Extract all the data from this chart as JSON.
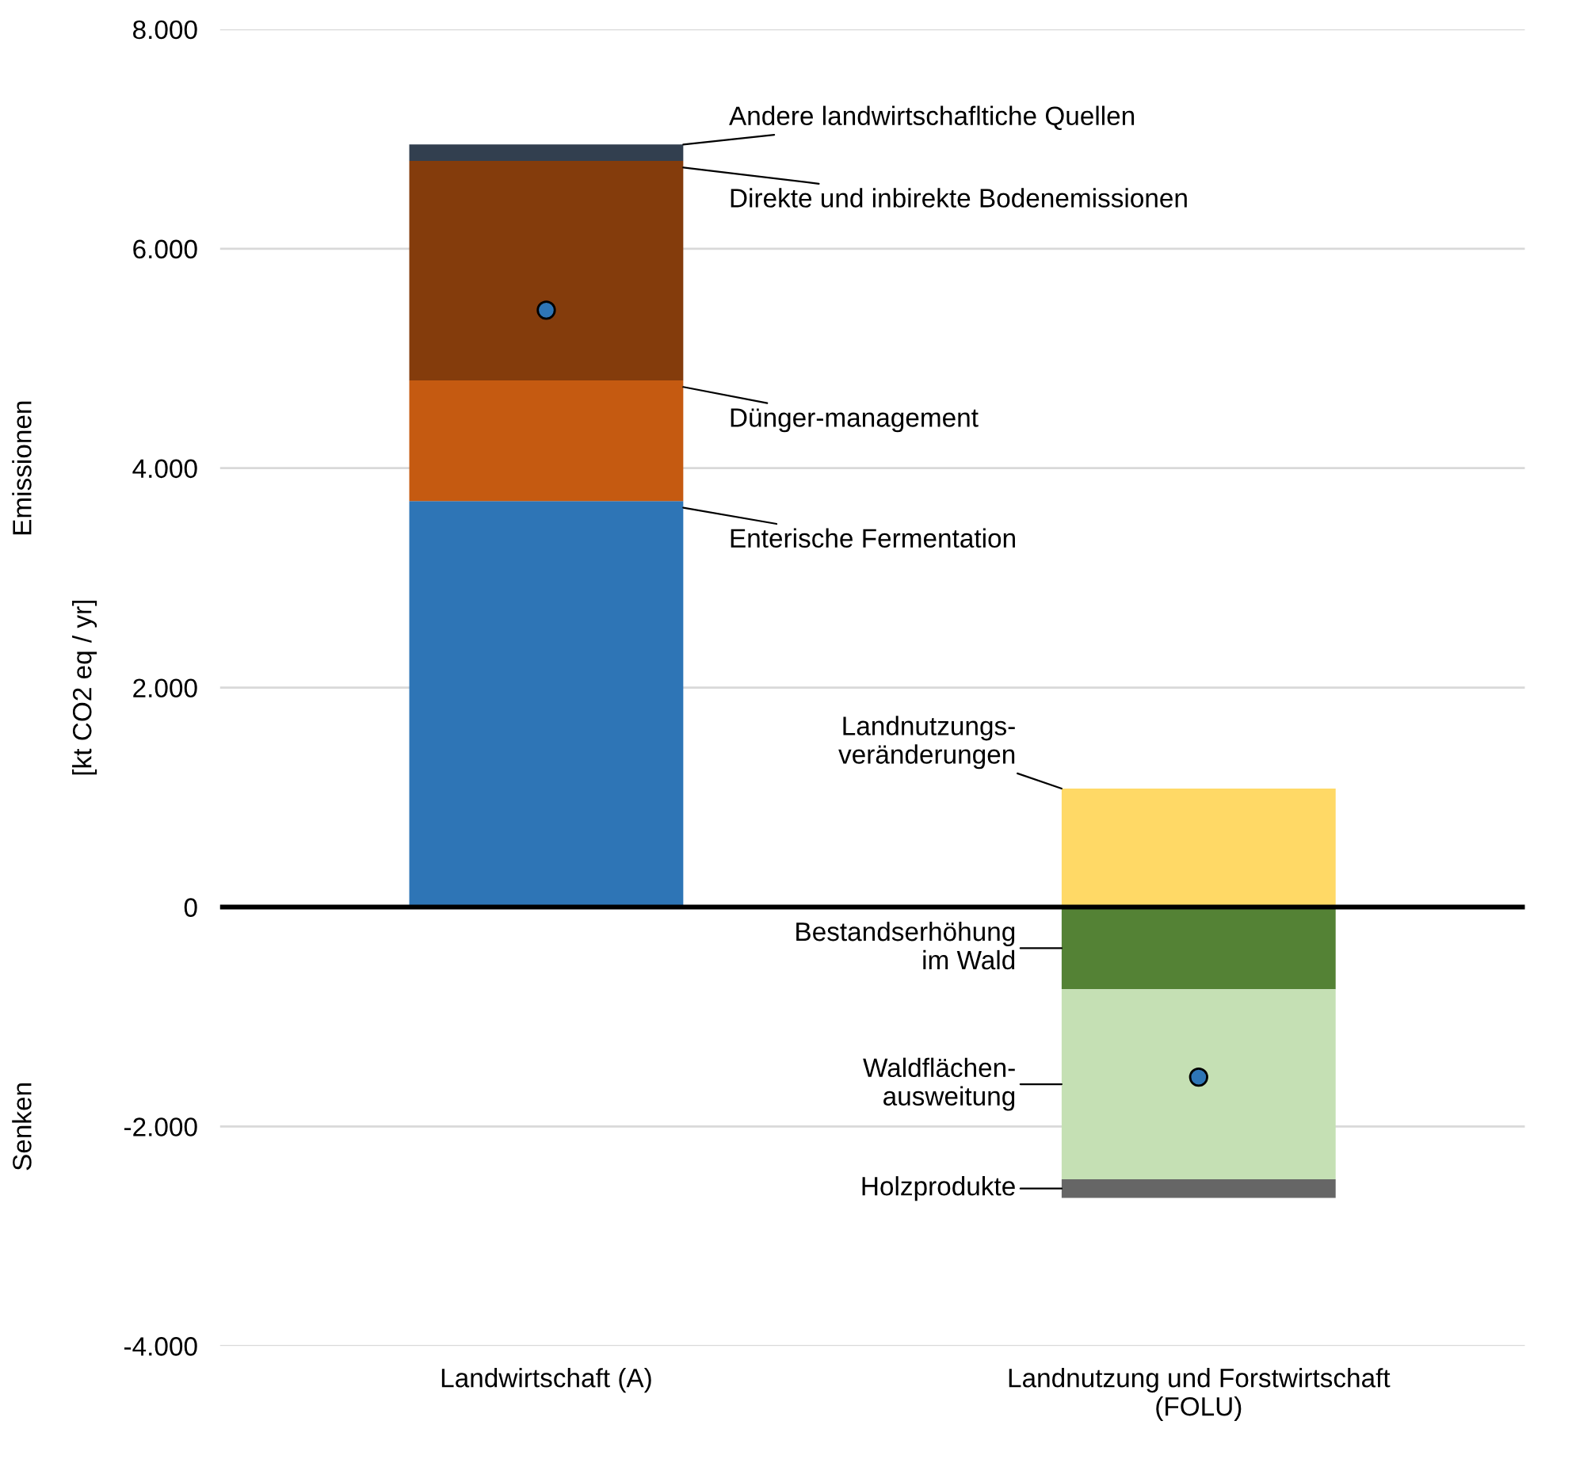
{
  "chart_data": {
    "type": "bar",
    "stacked": true,
    "categories": [
      "Landwirtschaft (A)",
      "Landnutzung und Forstwirtschaft\n(FOLU)"
    ],
    "ylabel": "[kt CO2 eq / yr]",
    "annotations": [
      "Emissionen",
      "Senken"
    ],
    "ylim": [
      -4000,
      8000
    ],
    "yticks": [
      {
        "value": -4000,
        "label": "-4.000"
      },
      {
        "value": -2000,
        "label": "-2.000"
      },
      0,
      {
        "value": 2000,
        "label": "2.000"
      },
      {
        "value": 4000,
        "label": "4.000"
      },
      {
        "value": 6000,
        "label": "6.000"
      },
      {
        "value": 8000,
        "label": "8.000"
      }
    ],
    "grid": "y",
    "legend": false,
    "ref_lines": [
      {
        "axis": "y",
        "value": 0,
        "color": "#000000"
      }
    ],
    "series": [
      {
        "name": "Enterische Fermentation",
        "color": "#2e75b6",
        "values": [
          3700,
          null
        ]
      },
      {
        "name": "Dünger-management",
        "color": "#c55a11",
        "values": [
          1100,
          null
        ]
      },
      {
        "name": "Direkte und inbirekte Bodenemissionen",
        "color": "#843c0c",
        "values": [
          2000,
          null
        ]
      },
      {
        "name": "Andere landwirtschafltiche Quellen",
        "color": "#323f4f",
        "values": [
          150,
          null
        ]
      },
      {
        "name": "Landnutzungs-\nveränderungen",
        "color": "#ffd966",
        "values": [
          null,
          1080
        ]
      },
      {
        "name": "Bestandserhöhung\nim Wald",
        "color": "#548235",
        "values": [
          null,
          -750
        ]
      },
      {
        "name": "Waldflächen-\nausweitung",
        "color": "#c5e0b4",
        "values": [
          null,
          -1730
        ]
      },
      {
        "name": "Holzprodukte",
        "color": "#666666",
        "values": [
          null,
          -170
        ]
      },
      {
        "type": "scatter",
        "color": "#2e75b6",
        "marker": "circle",
        "x": [
          "Landwirtschaft (A)",
          "Landnutzung und Forstwirtschaft\n(FOLU)"
        ],
        "values": [
          5440,
          -1550
        ]
      }
    ]
  }
}
